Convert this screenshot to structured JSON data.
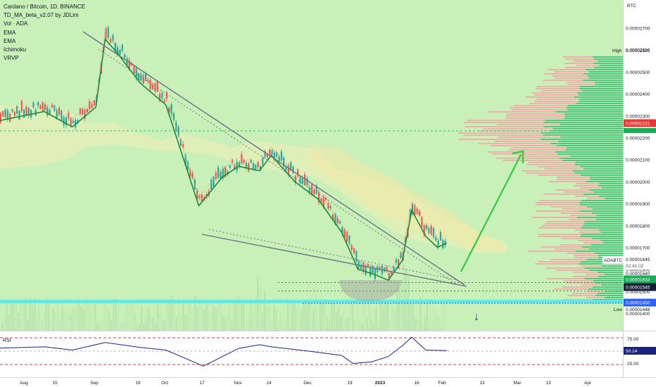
{
  "legend": {
    "title": "Cardano / Bitcoin, 1D, BINANCE",
    "indicators": [
      "TD_MA_beta_v2.07 by JDLim",
      "Vol · ADA",
      "EMA",
      "EMA",
      "Ichimoku",
      "VRVP"
    ]
  },
  "price_axis": {
    "unit": "BTC",
    "ticks": [
      "0.00002700",
      "0.00002600",
      "0.00002500",
      "0.00002400",
      "0.00002300",
      "0.00002200",
      "0.00002100",
      "0.00002000",
      "0.00001900",
      "0.00001800",
      "0.00001700",
      "0.00001600",
      "0.00001500",
      "0.00001400"
    ],
    "high_label": "High",
    "high_value": "0.00002590",
    "low_label": "Low",
    "low_value": "0.00001448",
    "price_badge_red": "0.00002231",
    "symbol_label": "ADABTC",
    "last_price": "0.00001645",
    "countdown": "02:41:02",
    "value_1640": "0.00001640",
    "badge_1633": "0.00001633",
    "badge_1545": "0.00001545",
    "badge_1450": "0.00001450"
  },
  "rsi": {
    "label": "RSI",
    "ticks": [
      "75.00",
      "25.00"
    ],
    "value": "50.14"
  },
  "time_axis": [
    "Aug",
    "15",
    "Sep",
    "19",
    "Oct",
    "17",
    "Nov",
    "14",
    "Dec",
    "19",
    "2023",
    "16",
    "Feb",
    "13",
    "Mar",
    "13",
    "Apr"
  ],
  "annotations": {
    "down_arrow": "↓"
  },
  "colors": {
    "up": "#26a69a",
    "down": "#ef5350",
    "chart_bg": "#c9f0b8",
    "cyan_band": "#5ee6e0",
    "rsi_line": "#1a237e",
    "blue_badge": "#2962ff",
    "arrow": "#2ecc40"
  },
  "chart_data": {
    "type": "line",
    "title": "Cardano / Bitcoin, 1D, BINANCE",
    "xlabel": "",
    "ylabel": "BTC",
    "x_range": [
      "2022-07-18",
      "2023-04-20"
    ],
    "y_range": [
      1.38e-05,
      2.79e-05
    ],
    "grid": false,
    "series": [
      {
        "name": "",
        "x": [
          "2022-07-18",
          "2022-08-10",
          "2022-08-22",
          "2022-09-01",
          "2022-09-05",
          "2022-09-10",
          "2022-09-20",
          "2022-10-01",
          "2022-10-15",
          "2022-10-25",
          "2022-11-01",
          "2022-11-10",
          "2022-11-15",
          "2022-11-25",
          "2022-12-05",
          "2022-12-15",
          "2022-12-22",
          "2022-12-28",
          "2023-01-04",
          "2023-01-10",
          "2023-01-14",
          "2023-01-20",
          "2023-01-25",
          "2023-01-29"
        ],
        "y": [
          2.2e-05,
          2.25e-05,
          2.18e-05,
          2.27e-05,
          2.58e-05,
          2.52e-05,
          2.38e-05,
          2.28e-05,
          1.82e-05,
          1.95e-05,
          2e-05,
          1.98e-05,
          2.05e-05,
          1.93e-05,
          1.85e-05,
          1.7e-05,
          1.53e-05,
          1.51e-05,
          1.48e-05,
          1.57e-05,
          1.8e-05,
          1.68e-05,
          1.63e-05,
          1.65e-05
        ]
      }
    ],
    "rsi_series": {
      "name": "RSI",
      "x": [
        "2022-07-18",
        "2022-08-10",
        "2022-08-22",
        "2022-09-05",
        "2022-09-20",
        "2022-10-01",
        "2022-10-17",
        "2022-11-01",
        "2022-11-10",
        "2022-11-15",
        "2022-12-01",
        "2022-12-15",
        "2022-12-20",
        "2022-12-28",
        "2023-01-04",
        "2023-01-10",
        "2023-01-14",
        "2023-01-20",
        "2023-01-29"
      ],
      "y": [
        55,
        58,
        52,
        66,
        57,
        52,
        22,
        55,
        62,
        58,
        50,
        42,
        27,
        30,
        40,
        60,
        76,
        52,
        51
      ]
    },
    "rsi_levels": [
      75,
      50,
      25
    ],
    "volume_profile": {
      "poc_price": 2.22e-05
    },
    "levels": [
      1.64e-05,
      1.55e-05,
      1.45e-05
    ],
    "annotations": [
      "Up arrow toward 0.00002100",
      "Down arrow under 0.00001450"
    ]
  }
}
